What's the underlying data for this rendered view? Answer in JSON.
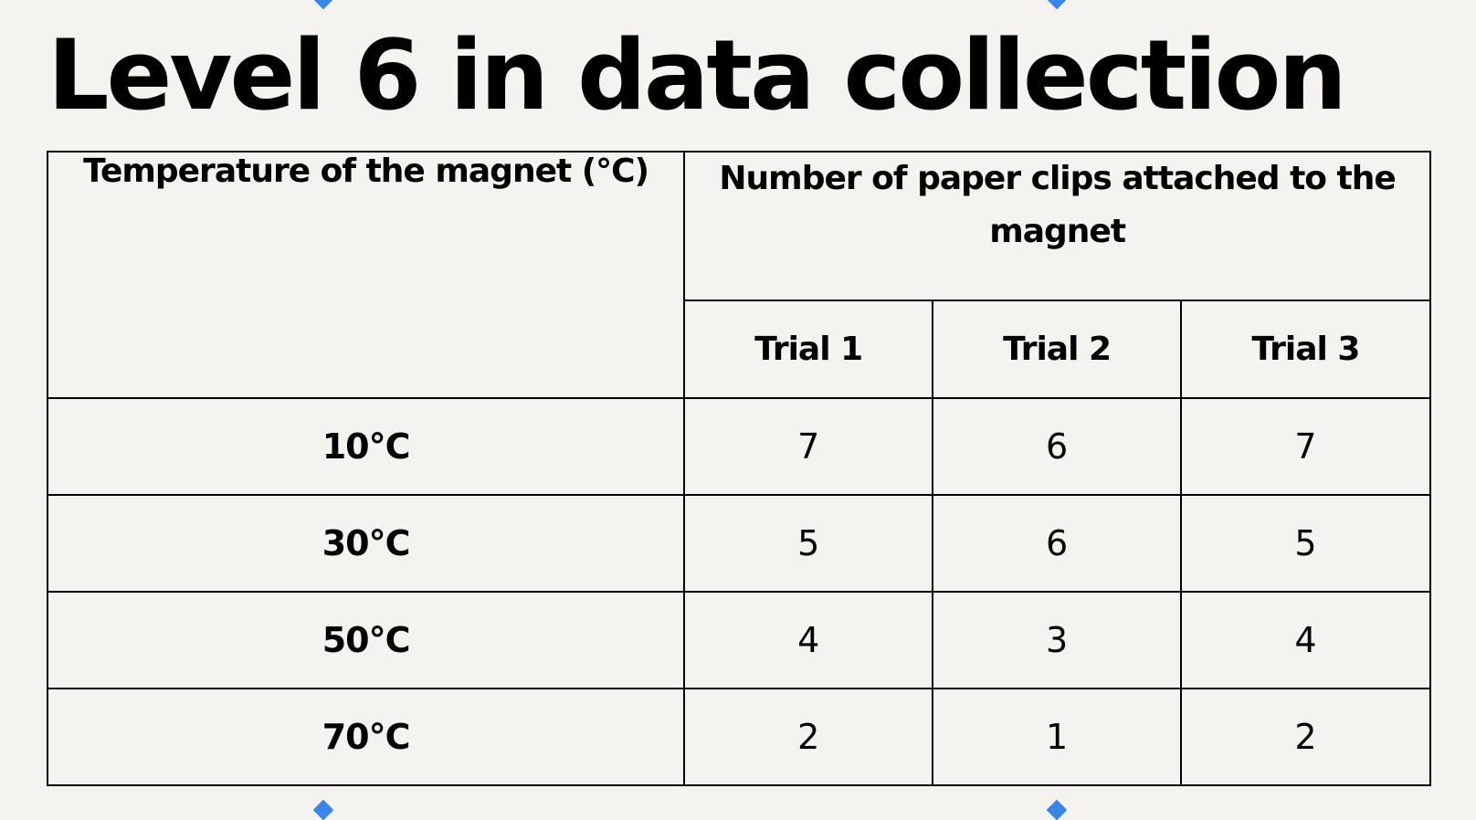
{
  "title": "Level 6 in data collection",
  "table": {
    "temperature_header": "Temperature of the magnet (°C)",
    "clips_header": "Number of paper clips attached to the magnet",
    "trial_headers": [
      "Trial 1",
      "Trial 2",
      "Trial 3"
    ],
    "rows": [
      {
        "temperature": "10°C",
        "trials": [
          "7",
          "6",
          "7"
        ]
      },
      {
        "temperature": "30°C",
        "trials": [
          "5",
          "6",
          "5"
        ]
      },
      {
        "temperature": "50°C",
        "trials": [
          "4",
          "3",
          "4"
        ]
      },
      {
        "temperature": "70°C",
        "trials": [
          "2",
          "1",
          "2"
        ]
      }
    ]
  },
  "colors": {
    "background": "#f4f3f0",
    "marker": "#3a86e8",
    "text": "#000000"
  }
}
